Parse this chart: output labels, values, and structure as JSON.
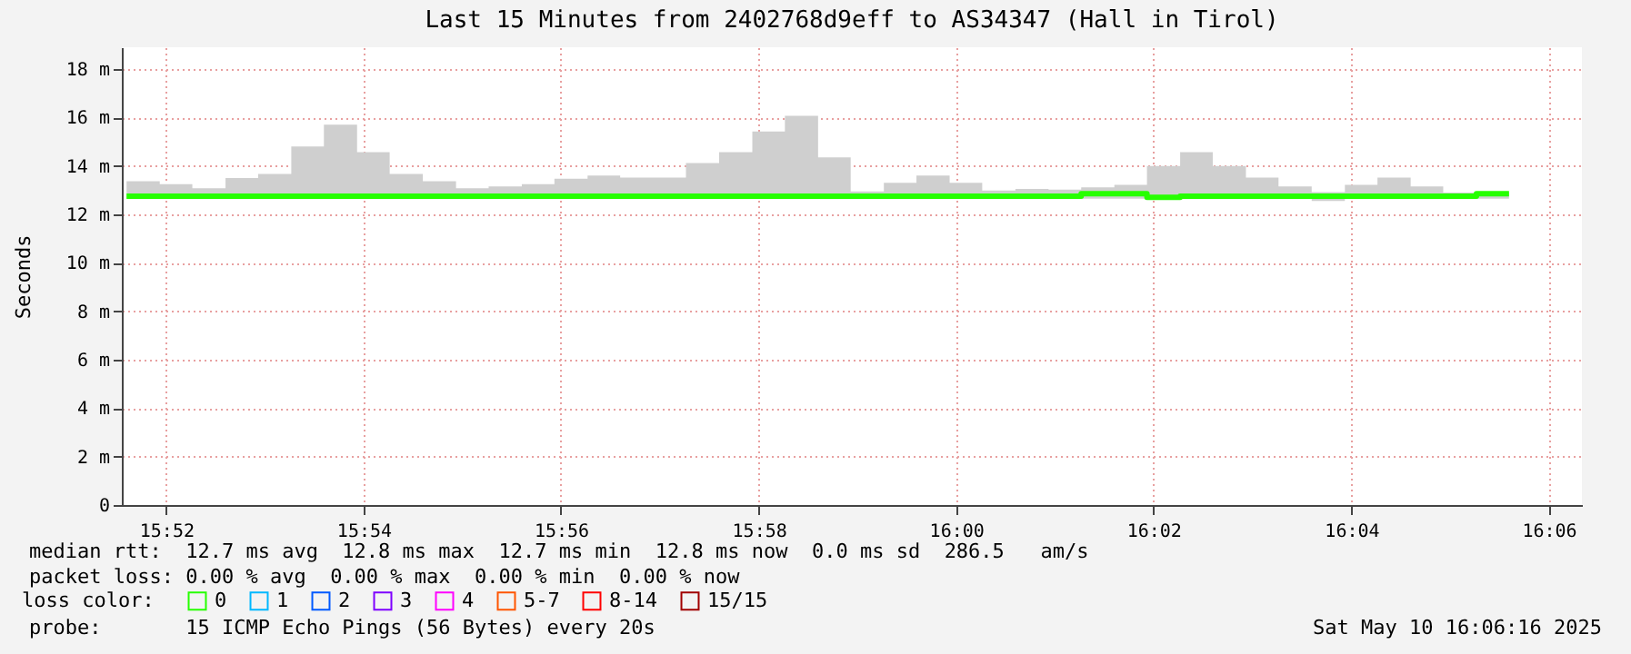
{
  "chart_data": {
    "type": "step",
    "title": "Last 15 Minutes from 2402768d9eff to AS34347 (Hall in Tirol)",
    "ylabel": "Seconds",
    "legend_title": "loss color:",
    "legend": "bottom left",
    "grid": true,
    "xlim": [
      15.8592,
      16.1056
    ],
    "xticks": [
      {
        "value": 15.8667,
        "label": "15:52"
      },
      {
        "value": 15.9,
        "label": "15:54"
      },
      {
        "value": 15.9333,
        "label": "15:56"
      },
      {
        "value": 15.9667,
        "label": "15:58"
      },
      {
        "value": 16.0,
        "label": "16:00"
      },
      {
        "value": 16.0333,
        "label": "16:02"
      },
      {
        "value": 16.0667,
        "label": "16:04"
      },
      {
        "value": 16.1,
        "label": "16:06"
      }
    ],
    "ylim": [
      0,
      18.9
    ],
    "yticks": [
      0,
      {
        "value": 2,
        "label": "2 m"
      },
      {
        "value": 4,
        "label": "4 m"
      },
      {
        "value": 6,
        "label": "6 m"
      },
      {
        "value": 8,
        "label": "8 m"
      },
      {
        "value": 10,
        "label": "10 m"
      },
      {
        "value": 12,
        "label": "12 m"
      },
      {
        "value": 14,
        "label": "14 m"
      },
      {
        "value": 16,
        "label": "16 m"
      },
      {
        "value": 18,
        "label": "18 m"
      }
    ],
    "x": [
      15.86,
      15.8656,
      15.8711,
      15.8767,
      15.8822,
      15.8878,
      15.8933,
      15.8989,
      15.9044,
      15.91,
      15.9156,
      15.9211,
      15.9267,
      15.9322,
      15.9378,
      15.9433,
      15.9489,
      15.9544,
      15.96,
      15.9656,
      15.9711,
      15.9767,
      15.9822,
      15.9878,
      15.9933,
      15.9989,
      16.0044,
      16.01,
      16.0156,
      16.0211,
      16.0267,
      16.0322,
      16.0378,
      16.0433,
      16.0489,
      16.0544,
      16.06,
      16.0656,
      16.0711,
      16.0767,
      16.0822,
      16.0878,
      16.0933
    ],
    "series": [
      {
        "name": "0",
        "color": "#26ff00",
        "values": [
          12.75,
          12.75,
          12.75,
          12.75,
          12.75,
          12.75,
          12.75,
          12.75,
          12.75,
          12.75,
          12.75,
          12.75,
          12.75,
          12.75,
          12.75,
          12.75,
          12.75,
          12.75,
          12.75,
          12.75,
          12.75,
          12.75,
          12.75,
          12.75,
          12.75,
          12.75,
          12.75,
          12.75,
          12.75,
          12.85,
          12.85,
          12.7,
          12.75,
          12.75,
          12.75,
          12.75,
          12.75,
          12.75,
          12.75,
          12.75,
          12.75,
          12.85,
          12.85
        ],
        "lower": [
          12.65,
          12.65,
          12.65,
          12.65,
          12.65,
          12.65,
          12.65,
          12.65,
          12.65,
          12.65,
          12.65,
          12.65,
          12.65,
          12.65,
          12.65,
          12.65,
          12.65,
          12.65,
          12.65,
          12.65,
          12.65,
          12.65,
          12.65,
          12.65,
          12.65,
          12.65,
          12.65,
          12.65,
          12.65,
          12.65,
          12.65,
          12.65,
          12.65,
          12.65,
          12.65,
          12.65,
          12.55,
          12.65,
          12.65,
          12.65,
          12.65,
          12.65,
          12.65
        ],
        "upper": [
          13.37,
          13.25,
          13.08,
          13.5,
          13.67,
          14.8,
          15.7,
          14.57,
          13.67,
          13.37,
          13.08,
          13.15,
          13.25,
          13.47,
          13.6,
          13.52,
          13.52,
          14.12,
          14.57,
          15.42,
          16.07,
          14.35,
          12.95,
          13.3,
          13.6,
          13.3,
          12.98,
          13.05,
          13.02,
          13.12,
          13.22,
          14.0,
          14.57,
          14.0,
          13.52,
          13.15,
          12.92,
          13.22,
          13.52,
          13.15,
          12.9,
          12.9,
          13.0
        ]
      },
      {
        "name": "1",
        "color": "#00b8ff",
        "values": [
          null,
          null,
          null,
          null,
          null,
          null,
          null,
          null,
          null,
          null,
          null,
          null,
          null,
          null,
          null,
          null,
          null,
          null,
          null,
          null,
          null,
          null,
          null,
          null,
          null,
          null,
          null,
          null,
          null,
          null,
          null,
          null,
          null,
          null,
          null,
          null,
          null,
          null,
          null,
          null,
          null,
          null,
          null
        ]
      },
      {
        "name": "2",
        "color": "#0059ff",
        "values": [
          null,
          null,
          null,
          null,
          null,
          null,
          null,
          null,
          null,
          null,
          null,
          null,
          null,
          null,
          null,
          null,
          null,
          null,
          null,
          null,
          null,
          null,
          null,
          null,
          null,
          null,
          null,
          null,
          null,
          null,
          null,
          null,
          null,
          null,
          null,
          null,
          null,
          null,
          null,
          null,
          null,
          null,
          null
        ]
      },
      {
        "name": "3",
        "color": "#7e00ff",
        "values": [
          null,
          null,
          null,
          null,
          null,
          null,
          null,
          null,
          null,
          null,
          null,
          null,
          null,
          null,
          null,
          null,
          null,
          null,
          null,
          null,
          null,
          null,
          null,
          null,
          null,
          null,
          null,
          null,
          null,
          null,
          null,
          null,
          null,
          null,
          null,
          null,
          null,
          null,
          null,
          null,
          null,
          null,
          null
        ]
      },
      {
        "name": "4",
        "color": "#ff00ff",
        "values": [
          null,
          null,
          null,
          null,
          null,
          null,
          null,
          null,
          null,
          null,
          null,
          null,
          null,
          null,
          null,
          null,
          null,
          null,
          null,
          null,
          null,
          null,
          null,
          null,
          null,
          null,
          null,
          null,
          null,
          null,
          null,
          null,
          null,
          null,
          null,
          null,
          null,
          null,
          null,
          null,
          null,
          null,
          null
        ]
      },
      {
        "name": "5-7",
        "color": "#ff5500",
        "values": [
          null,
          null,
          null,
          null,
          null,
          null,
          null,
          null,
          null,
          null,
          null,
          null,
          null,
          null,
          null,
          null,
          null,
          null,
          null,
          null,
          null,
          null,
          null,
          null,
          null,
          null,
          null,
          null,
          null,
          null,
          null,
          null,
          null,
          null,
          null,
          null,
          null,
          null,
          null,
          null,
          null,
          null,
          null
        ]
      },
      {
        "name": "8-14",
        "color": "#ff0000",
        "values": [
          null,
          null,
          null,
          null,
          null,
          null,
          null,
          null,
          null,
          null,
          null,
          null,
          null,
          null,
          null,
          null,
          null,
          null,
          null,
          null,
          null,
          null,
          null,
          null,
          null,
          null,
          null,
          null,
          null,
          null,
          null,
          null,
          null,
          null,
          null,
          null,
          null,
          null,
          null,
          null,
          null,
          null,
          null
        ]
      },
      {
        "name": "15/15",
        "color": "#a10000",
        "values": [
          null,
          null,
          null,
          null,
          null,
          null,
          null,
          null,
          null,
          null,
          null,
          null,
          null,
          null,
          null,
          null,
          null,
          null,
          null,
          null,
          null,
          null,
          null,
          null,
          null,
          null,
          null,
          null,
          null,
          null,
          null,
          null,
          null,
          null,
          null,
          null,
          null,
          null,
          null,
          null,
          null,
          null,
          null
        ]
      }
    ],
    "annotations": [
      "median rtt:  12.7 ms avg  12.8 ms max  12.7 ms min  12.8 ms now  0.0 ms sd  286.5   am/s",
      "packet loss: 0.00 % avg  0.00 % max  0.00 % min  0.00 % now",
      "probe:       15 ICMP Echo Pings (56 Bytes) every 20s",
      "Sat May 10 16:06:16 2025"
    ]
  }
}
